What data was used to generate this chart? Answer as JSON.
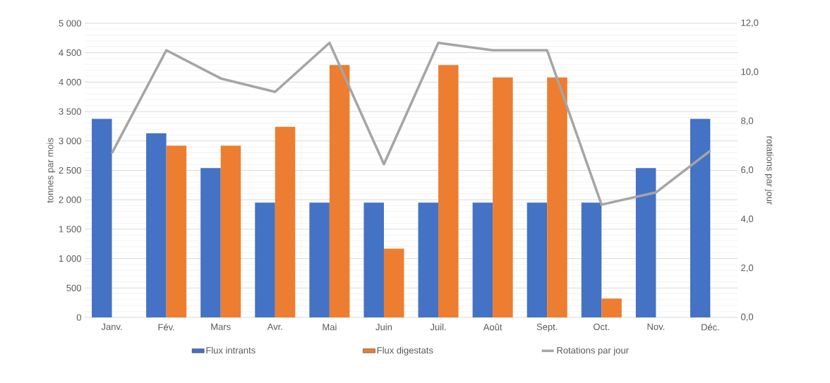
{
  "chart_data": {
    "type": "bar",
    "ylabel": "tonnes par mois",
    "y2label": "rotations par jour",
    "categories": [
      "Janv.",
      "Fév.",
      "Mars",
      "Avr.",
      "Mai",
      "Juin",
      "Juil.",
      "Août",
      "Sept.",
      "Oct.",
      "Nov.",
      "Déc."
    ],
    "series": [
      {
        "name": "Flux intrants",
        "color": "#4472c4",
        "values": [
          3375,
          3130,
          2540,
          1950,
          1950,
          1950,
          1950,
          1950,
          1950,
          1950,
          2540,
          3375
        ]
      },
      {
        "name": "Flux digestats",
        "color": "#ed7d31",
        "values": [
          null,
          2920,
          2920,
          3240,
          4290,
          1170,
          4290,
          4080,
          4080,
          320,
          null,
          null
        ]
      },
      {
        "name": "Rotations par jour",
        "type": "line",
        "axis": "y2",
        "color": "#a5a5a5",
        "values": [
          6.7,
          10.9,
          9.75,
          9.2,
          11.2,
          6.25,
          11.2,
          10.9,
          10.9,
          4.6,
          5.1,
          6.8
        ]
      }
    ],
    "ylim": [
      0,
      5000
    ],
    "yticks": [
      0,
      500,
      {
        "value": 1000,
        "label": "1 000"
      },
      {
        "value": 1500,
        "label": "1 500"
      },
      {
        "value": 2000,
        "label": "2 000"
      },
      {
        "value": 2500,
        "label": "2 500"
      },
      {
        "value": 3000,
        "label": "3 000"
      },
      {
        "value": 3500,
        "label": "3 500"
      },
      {
        "value": 4000,
        "label": "4 000"
      },
      {
        "value": 4500,
        "label": "4 500"
      },
      {
        "value": 5000,
        "label": "5 000"
      }
    ],
    "y2lim": [
      0,
      12
    ],
    "y2ticks": [
      {
        "value": 0,
        "label": "0,0"
      },
      {
        "value": 2,
        "label": "2,0"
      },
      {
        "value": 4,
        "label": "4,0"
      },
      {
        "value": 6,
        "label": "6,0"
      },
      {
        "value": 8,
        "label": "8,0"
      },
      {
        "value": 10,
        "label": "10,0"
      },
      {
        "value": 12,
        "label": "12,0"
      }
    ],
    "grid": "y",
    "legend": "bottom",
    "marker": "none",
    "line_style": "solid"
  }
}
